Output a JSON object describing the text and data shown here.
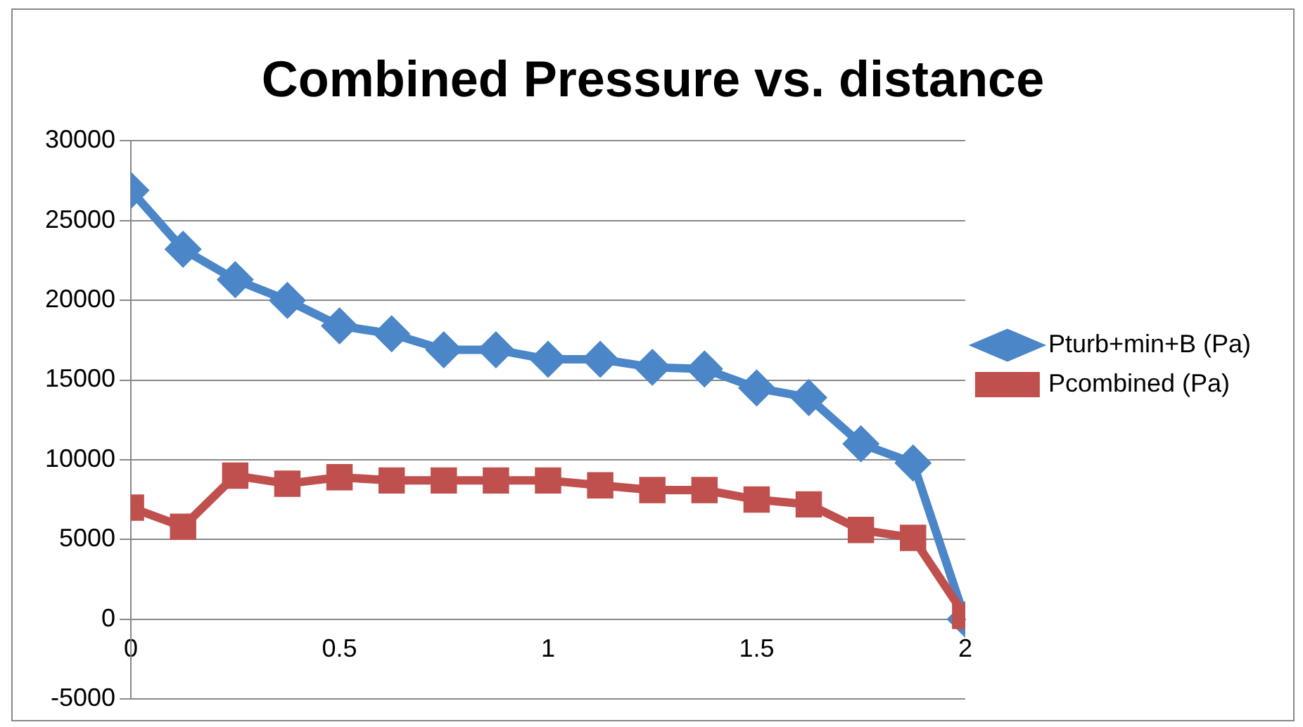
{
  "chart_data": {
    "type": "line",
    "title": "Combined Pressure vs. distance",
    "x": [
      0,
      0.125,
      0.25,
      0.375,
      0.5,
      0.625,
      0.75,
      0.875,
      1,
      1.125,
      1.25,
      1.375,
      1.5,
      1.625,
      1.75,
      1.875,
      2
    ],
    "series": [
      {
        "name": "Pturb+min+B (Pa)",
        "color": "#4a86c8",
        "marker": "diamond",
        "values": [
          26900,
          23200,
          21300,
          20000,
          18400,
          17900,
          16900,
          16900,
          16300,
          16300,
          15800,
          15700,
          14500,
          13900,
          11000,
          9800,
          0
        ]
      },
      {
        "name": "Pcombined (Pa)",
        "color": "#c0504d",
        "marker": "square",
        "values": [
          7000,
          5800,
          9000,
          8500,
          8900,
          8700,
          8700,
          8700,
          8700,
          8400,
          8100,
          8100,
          7500,
          7200,
          5600,
          5100,
          200
        ]
      }
    ],
    "xlim": [
      0,
      2
    ],
    "xticks": [
      0,
      0.5,
      1,
      1.5,
      2
    ],
    "ylim": [
      -5000,
      30000
    ],
    "yticks": [
      -5000,
      0,
      5000,
      10000,
      15000,
      20000,
      25000,
      30000
    ],
    "grid": "y",
    "legend": "right",
    "line_style": "solid"
  }
}
